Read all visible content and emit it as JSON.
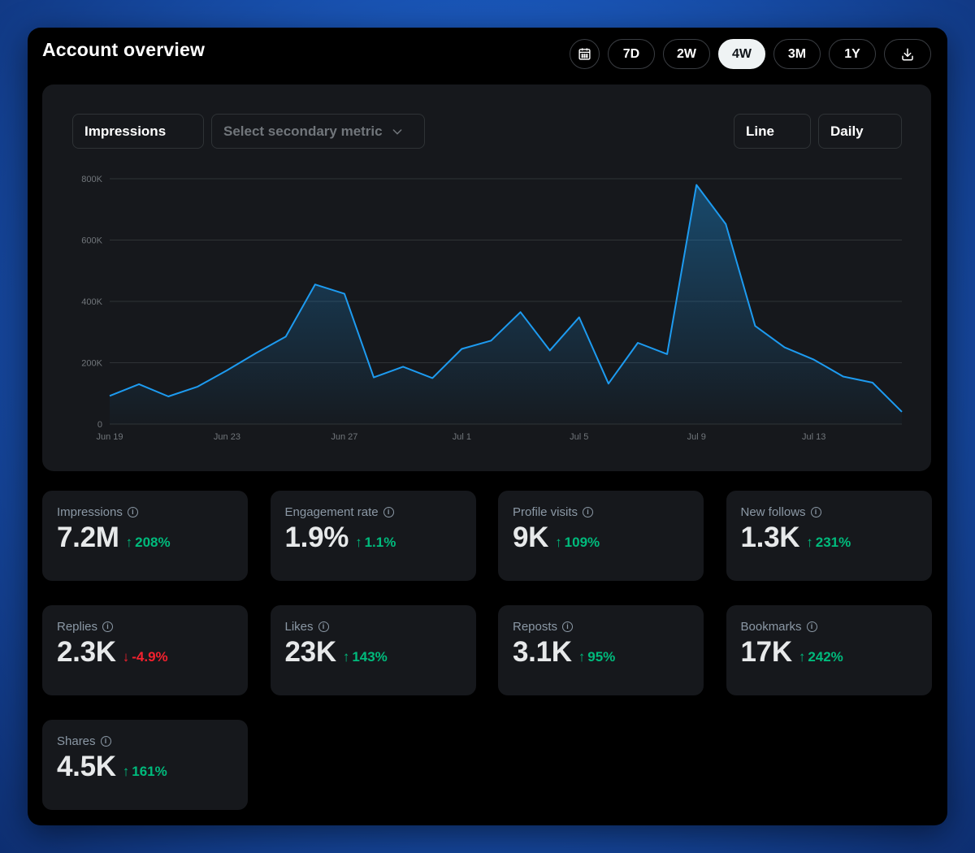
{
  "header": {
    "title": "Account overview",
    "ranges": [
      {
        "label": "7D",
        "active": false
      },
      {
        "label": "2W",
        "active": false
      },
      {
        "label": "4W",
        "active": true
      },
      {
        "label": "3M",
        "active": false
      },
      {
        "label": "1Y",
        "active": false
      }
    ],
    "calendar_icon": "calendar-icon",
    "download_icon": "download-icon"
  },
  "controls": {
    "primary_metric": "Impressions",
    "secondary_metric_placeholder": "Select secondary metric",
    "chart_type": "Line",
    "granularity": "Daily"
  },
  "chart_data": {
    "type": "area",
    "x": [
      "Jun 19",
      "Jun 20",
      "Jun 21",
      "Jun 22",
      "Jun 23",
      "Jun 24",
      "Jun 25",
      "Jun 26",
      "Jun 27",
      "Jun 28",
      "Jun 29",
      "Jun 30",
      "Jul 1",
      "Jul 2",
      "Jul 3",
      "Jul 4",
      "Jul 5",
      "Jul 6",
      "Jul 7",
      "Jul 8",
      "Jul 9",
      "Jul 10",
      "Jul 11",
      "Jul 12",
      "Jul 13",
      "Jul 14",
      "Jul 15",
      "Jul 16"
    ],
    "x_tick_labels": [
      "Jun 19",
      "Jun 23",
      "Jun 27",
      "Jul 1",
      "Jul 5",
      "Jul 9",
      "Jul 13"
    ],
    "y_tick_labels": [
      "0",
      "200K",
      "400K",
      "600K",
      "800K"
    ],
    "ylim": [
      0,
      800000
    ],
    "series": [
      {
        "values": [
          92000,
          130000,
          90000,
          122000,
          175000,
          232000,
          285000,
          455000,
          425000,
          152000,
          187000,
          150000,
          245000,
          272000,
          365000,
          240000,
          348000,
          132000,
          265000,
          228000,
          780000,
          652000,
          320000,
          250000,
          210000,
          155000,
          135000,
          40000
        ]
      }
    ],
    "colors": {
      "line": "#1d9bf0",
      "grid": "#2f3336",
      "tick": "#71767b"
    }
  },
  "metrics": [
    {
      "label": "Impressions",
      "value": "7.2M",
      "change": "208%",
      "direction": "up"
    },
    {
      "label": "Engagement rate",
      "value": "1.9%",
      "change": "1.1%",
      "direction": "up"
    },
    {
      "label": "Profile visits",
      "value": "9K",
      "change": "109%",
      "direction": "up"
    },
    {
      "label": "New follows",
      "value": "1.3K",
      "change": "231%",
      "direction": "up"
    },
    {
      "label": "Replies",
      "value": "2.3K",
      "change": "-4.9%",
      "direction": "down"
    },
    {
      "label": "Likes",
      "value": "23K",
      "change": "143%",
      "direction": "up"
    },
    {
      "label": "Reposts",
      "value": "3.1K",
      "change": "95%",
      "direction": "up"
    },
    {
      "label": "Bookmarks",
      "value": "17K",
      "change": "242%",
      "direction": "up"
    },
    {
      "label": "Shares",
      "value": "4.5K",
      "change": "161%",
      "direction": "up"
    }
  ]
}
